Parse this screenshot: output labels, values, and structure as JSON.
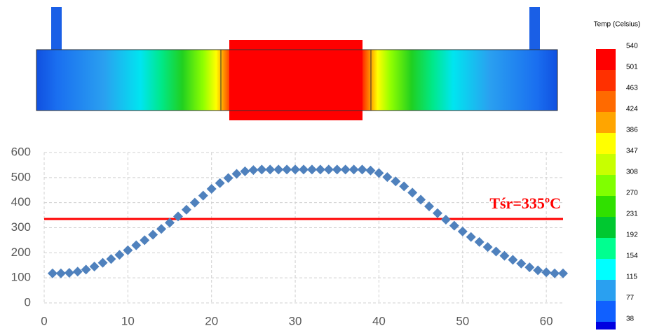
{
  "chart_data": {
    "type": "scatter",
    "x": [
      1,
      2,
      3,
      4,
      5,
      6,
      7,
      8,
      9,
      10,
      11,
      12,
      13,
      14,
      15,
      16,
      17,
      18,
      19,
      20,
      21,
      22,
      23,
      24,
      25,
      26,
      27,
      28,
      29,
      30,
      31,
      32,
      33,
      34,
      35,
      36,
      37,
      38,
      39,
      40,
      41,
      42,
      43,
      44,
      45,
      46,
      47,
      48,
      49,
      50,
      51,
      52,
      53,
      54,
      55,
      56,
      57,
      58,
      59,
      60,
      61,
      62
    ],
    "series": [
      {
        "color": "#4f81bd",
        "values": [
          118,
          118,
          120,
          125,
          133,
          145,
          160,
          175,
          192,
          210,
          230,
          250,
          272,
          295,
          320,
          345,
          372,
          400,
          428,
          455,
          478,
          498,
          515,
          525,
          530,
          532,
          532,
          532,
          532,
          532,
          532,
          532,
          532,
          532,
          532,
          532,
          532,
          532,
          528,
          518,
          502,
          485,
          465,
          440,
          412,
          385,
          358,
          332,
          308,
          285,
          263,
          243,
          223,
          205,
          188,
          172,
          157,
          142,
          130,
          122,
          118,
          118
        ]
      }
    ],
    "xlim": [
      0,
      62
    ],
    "xticks": [
      0,
      10,
      20,
      30,
      40,
      50,
      60
    ],
    "ylim": [
      0,
      600
    ],
    "yticks": [
      0,
      100,
      200,
      300,
      400,
      500,
      600
    ],
    "grid": true,
    "reference_line": {
      "value": 335,
      "label": "Tśr=335ºC",
      "color": "#ff0000"
    },
    "colorbar": {
      "title": "Temp (Celsius)",
      "labels": [
        540,
        501,
        463,
        424,
        386,
        347,
        308,
        270,
        231,
        192,
        154,
        115,
        77,
        38
      ],
      "colors": [
        "#ff0000",
        "#ff3000",
        "#ff6a00",
        "#ffa500",
        "#ffff00",
        "#c8ff00",
        "#80ff00",
        "#30e000",
        "#00c830",
        "#00ff90",
        "#00ffff",
        "#2aa0f0",
        "#1060ff",
        "#0000e0"
      ]
    }
  }
}
